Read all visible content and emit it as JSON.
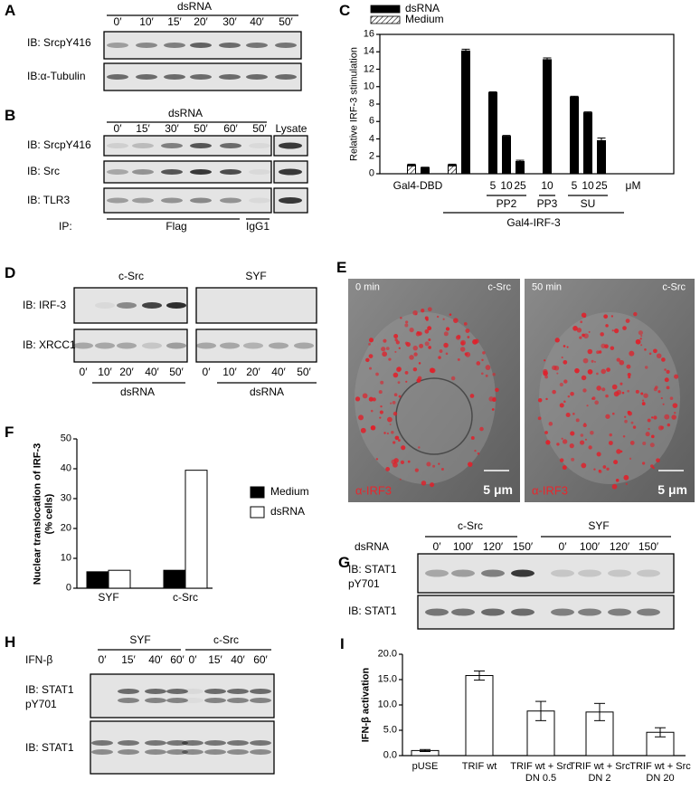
{
  "chart_data": [
    {
      "type": "bar",
      "letter": "C",
      "ylabel": "Relative IRF-3 stimulation",
      "categories": [
        null,
        null,
        null,
        null,
        "5",
        "10",
        "25",
        "10",
        "5",
        "10",
        "25"
      ],
      "series": [
        {
          "name": "dsRNA",
          "color": "#000000",
          "values": [
            null,
            0.7,
            null,
            14.1,
            9.3,
            4.3,
            1.4,
            13.1,
            8.8,
            7.0,
            3.8
          ],
          "errors": [
            null,
            0.05,
            null,
            0.2,
            0.1,
            0.1,
            0.15,
            0.2,
            0.1,
            0.1,
            0.3
          ]
        },
        {
          "name": "Medium",
          "color": "#ffffff",
          "hatch": true,
          "values": [
            1.0,
            null,
            1.0,
            null,
            null,
            null,
            null,
            null,
            null,
            null,
            null
          ],
          "errors": [
            0.1,
            null,
            0.1,
            null,
            null,
            null,
            null,
            null,
            null,
            null,
            null
          ]
        }
      ],
      "ylim": [
        0,
        16
      ],
      "yticks": [
        0,
        2,
        4,
        6,
        8,
        10,
        12,
        14,
        16
      ],
      "unit": "μM",
      "group_labels": [
        "PP2",
        "PP3",
        "SU"
      ],
      "outer_labels": [
        "Gal4-DBD",
        "Gal4-IRF-3"
      ]
    },
    {
      "type": "bar",
      "letter": "F",
      "ylabel": "Nuclear translocation of IRF-3 (% cells)",
      "categories": [
        "SYF",
        "c-Src"
      ],
      "series": [
        {
          "name": "Medium",
          "color": "#000000",
          "values": [
            5.5,
            6.0
          ]
        },
        {
          "name": "dsRNA",
          "color": "#ffffff",
          "values": [
            6.0,
            39.5
          ]
        }
      ],
      "ylim": [
        0,
        50
      ],
      "yticks": [
        0,
        10,
        20,
        30,
        40,
        50
      ]
    },
    {
      "type": "bar",
      "letter": "I",
      "ylabel": "IFN-β activation",
      "categories": [
        "pUSE",
        "TRIF wt",
        "TRIF wt + Src DN 0.5",
        "TRIF wt + Src DN 2",
        "TRIF wt + Src DN 20"
      ],
      "values": [
        1.0,
        15.8,
        8.8,
        8.6,
        4.6
      ],
      "errors": [
        0.2,
        0.9,
        1.9,
        1.7,
        0.9
      ],
      "color": "#ffffff",
      "ylim": [
        0,
        20
      ],
      "yticks": [
        {
          "value": 0,
          "label": "0.0"
        },
        {
          "value": 5,
          "label": "5.0"
        },
        {
          "value": 10,
          "label": "10.0"
        },
        {
          "value": 15,
          "label": "15.0"
        },
        {
          "value": 20,
          "label": "20.0"
        }
      ]
    }
  ],
  "panels": {
    "A": {
      "letter": "A",
      "treatment": "dsRNA",
      "lanes": [
        "0′",
        "10′",
        "15′",
        "20′",
        "30′",
        "40′",
        "50′"
      ],
      "row_labels": [
        "IB: SrcpY416",
        "IB:α-Tubulin"
      ]
    },
    "B": {
      "letter": "B",
      "treatment": "dsRNA",
      "lanes": [
        "0′",
        "15′",
        "30′",
        "50′",
        "60′",
        "50′",
        "Lysate"
      ],
      "row_labels": [
        "IB: SrcpY416",
        "IB: Src",
        "IB: TLR3"
      ],
      "ip_label": "IP:",
      "ip_groups": [
        "Flag",
        "IgG1"
      ]
    },
    "D": {
      "letter": "D",
      "groups": [
        "c-Src",
        "SYF"
      ],
      "row_labels": [
        "IB: IRF-3",
        "IB: XRCC1"
      ],
      "lanes": [
        [
          "0′",
          "10′",
          "20′",
          "40′",
          "50′"
        ],
        [
          "0′",
          "10′",
          "20′",
          "40′",
          "50′"
        ]
      ],
      "treatments": [
        "dsRNA",
        "dsRNA"
      ]
    },
    "E": {
      "letter": "E",
      "images": [
        {
          "time": "0 min",
          "cell": "c-Src",
          "stain": "α-IRF3",
          "scale": "5 μm"
        },
        {
          "time": "50 min",
          "cell": "c-Src",
          "stain": "α-IRF3",
          "scale": "5 μm"
        }
      ]
    },
    "G": {
      "letter": "G",
      "groups": [
        "c-Src",
        "SYF"
      ],
      "treatment": "dsRNA",
      "lanes": [
        [
          "0′",
          "100′",
          "120′",
          "150′"
        ],
        [
          "0′",
          "100′",
          "120′",
          "150′"
        ]
      ],
      "row_labels": [
        [
          "IB: STAT1",
          "pY701"
        ],
        [
          "IB: STAT1"
        ]
      ]
    },
    "H": {
      "letter": "H",
      "groups": [
        "SYF",
        "c-Src"
      ],
      "treatment": "IFN-β",
      "lanes": [
        [
          "0′",
          "15′",
          "40′",
          "60′"
        ],
        [
          "0′",
          "15′",
          "40′",
          "60′"
        ]
      ],
      "row_labels": [
        [
          "IB: STAT1",
          "pY701"
        ],
        [
          "IB: STAT1"
        ]
      ]
    }
  }
}
